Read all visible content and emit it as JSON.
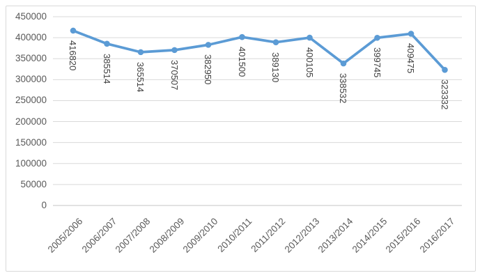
{
  "chart_data": {
    "type": "line",
    "title": "",
    "categories": [
      "2005/2006",
      "2006/2007",
      "2007/2008",
      "2008/2009",
      "2009/2010",
      "2010/2011",
      "2011/2012",
      "2012/2013",
      "2013/2014",
      "2014/2015",
      "2015/2016",
      "2016/2017"
    ],
    "series": [
      {
        "name": "",
        "values": [
          416820,
          385514,
          365514,
          370507,
          382950,
          401500,
          389130,
          400105,
          338532,
          399745,
          409475,
          323332
        ]
      }
    ],
    "data_labels": [
      "416820",
      "385514",
      "365514",
      "370507",
      "382950",
      "401500",
      "389130",
      "400105",
      "338532",
      "399745",
      "409475",
      "323332"
    ],
    "xlabel": "",
    "ylabel": "",
    "ylim": [
      0,
      450000
    ],
    "ytick_step": 50000,
    "yticks": [
      "0",
      "50000",
      "100000",
      "150000",
      "200000",
      "250000",
      "300000",
      "350000",
      "400000",
      "450000"
    ],
    "grid": "horizontal",
    "legend": "none",
    "marker": "circle",
    "data_label_rotation_deg": 90,
    "x_label_rotation_deg": -45,
    "colors": {
      "series": "#5B9BD5",
      "gridline": "#D9D9D9",
      "axis_line": "#C6C6C6",
      "tick_label": "#595959",
      "data_label": "#404040",
      "chart_border": "#D9D9D9",
      "background": "#FFFFFF"
    }
  }
}
